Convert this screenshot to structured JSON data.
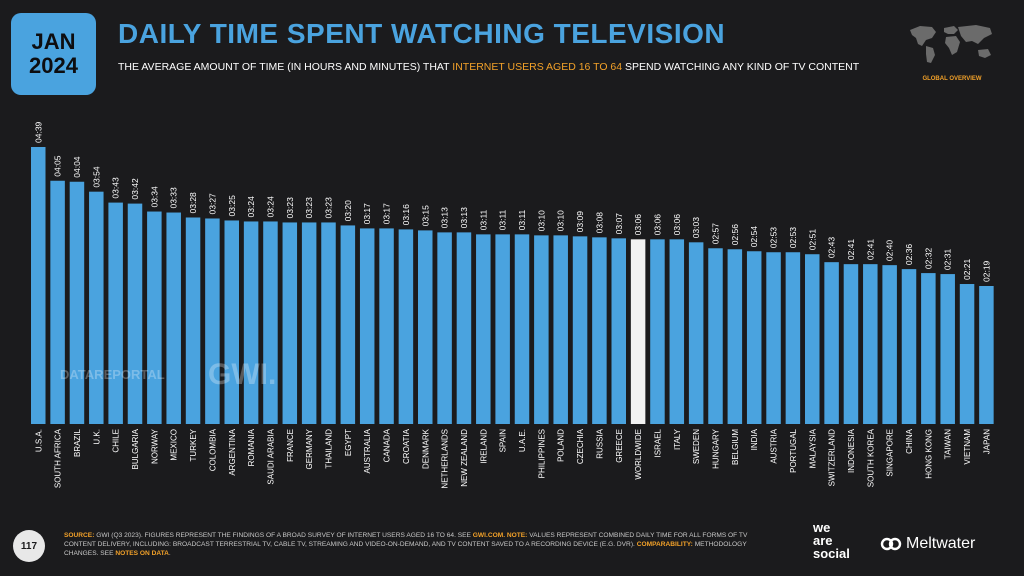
{
  "header": {
    "month": "JAN",
    "year": "2024",
    "title": "DAILY TIME SPENT WATCHING TELEVISION",
    "subtitle_pre": "THE AVERAGE AMOUNT OF TIME (IN HOURS AND MINUTES) THAT ",
    "subtitle_highlight": "INTERNET USERS AGED 16 TO 64",
    "subtitle_post": " SPEND WATCHING ANY KIND OF TV CONTENT",
    "global_label": "GLOBAL OVERVIEW"
  },
  "watermarks": {
    "datareportal": "DATAREPORTAL",
    "gwi": "GWI."
  },
  "colors": {
    "bar": "#4aa3df",
    "highlight_bar": "#f2f2f2",
    "accent": "#f2a129",
    "background": "#1b1b1d"
  },
  "chart_data": {
    "type": "bar",
    "highlight_category": "WORLDWIDE",
    "categories": [
      "U.S.A.",
      "SOUTH AFRICA",
      "BRAZIL",
      "U.K.",
      "CHILE",
      "BULGARIA",
      "NORWAY",
      "MEXICO",
      "TURKEY",
      "COLOMBIA",
      "ARGENTINA",
      "ROMANIA",
      "SAUDI ARABIA",
      "FRANCE",
      "GERMANY",
      "THAILAND",
      "EGYPT",
      "AUSTRALIA",
      "CANADA",
      "CROATIA",
      "DENMARK",
      "NETHERLANDS",
      "NEW ZEALAND",
      "IRELAND",
      "SPAIN",
      "U.A.E.",
      "PHILIPPINES",
      "POLAND",
      "CZECHIA",
      "RUSSIA",
      "GREECE",
      "WORLDWIDE",
      "ISRAEL",
      "ITALY",
      "SWEDEN",
      "HUNGARY",
      "BELGIUM",
      "INDIA",
      "AUSTRIA",
      "PORTUGAL",
      "MALAYSIA",
      "SWITZERLAND",
      "INDONESIA",
      "SOUTH KOREA",
      "SINGAPORE",
      "CHINA",
      "HONG KONG",
      "TAIWAN",
      "VIETNAM",
      "JAPAN"
    ],
    "labels": [
      "04:39",
      "04:05",
      "04:04",
      "03:54",
      "03:43",
      "03:42",
      "03:34",
      "03:33",
      "03:28",
      "03:27",
      "03:25",
      "03:24",
      "03:24",
      "03:23",
      "03:23",
      "03:23",
      "03:20",
      "03:17",
      "03:17",
      "03:16",
      "03:15",
      "03:13",
      "03:13",
      "03:11",
      "03:11",
      "03:11",
      "03:10",
      "03:10",
      "03:09",
      "03:08",
      "03:07",
      "03:06",
      "03:06",
      "03:06",
      "03:03",
      "02:57",
      "02:56",
      "02:54",
      "02:53",
      "02:53",
      "02:51",
      "02:43",
      "02:41",
      "02:41",
      "02:40",
      "02:36",
      "02:32",
      "02:31",
      "02:21",
      "02:19"
    ],
    "values_minutes": [
      279,
      245,
      244,
      234,
      223,
      222,
      214,
      213,
      208,
      207,
      205,
      204,
      204,
      203,
      203,
      203,
      200,
      197,
      197,
      196,
      195,
      193,
      193,
      191,
      191,
      191,
      190,
      190,
      189,
      188,
      187,
      186,
      186,
      186,
      183,
      177,
      176,
      174,
      173,
      173,
      171,
      163,
      161,
      161,
      160,
      156,
      152,
      151,
      141,
      139
    ]
  },
  "footer": {
    "page_number": "117",
    "source_label": "SOURCE:",
    "source_text": " GWI (Q3 2023). FIGURES REPRESENT THE FINDINGS OF A BROAD SURVEY OF INTERNET USERS AGED 16 TO 64. SEE ",
    "source_link": "GWI.COM",
    "note_label": ". NOTE:",
    "note_text": " VALUES REPRESENT COMBINED DAILY TIME FOR ALL FORMS OF TV CONTENT DELIVERY, INCLUDING: BROADCAST TERRESTRIAL TV, CABLE TV, STREAMING AND VIDEO-ON-DEMAND, AND TV CONTENT SAVED TO A RECORDING DEVICE (E.G. DVR). ",
    "comparability_label": "COMPARABILITY:",
    "comparability_text": " METHODOLOGY CHANGES. SEE ",
    "notes_link": "NOTES ON DATA",
    "end": ".",
    "brand_1": "we",
    "brand_2": "are",
    "brand_3": "social",
    "brand_4": "Meltwater"
  }
}
